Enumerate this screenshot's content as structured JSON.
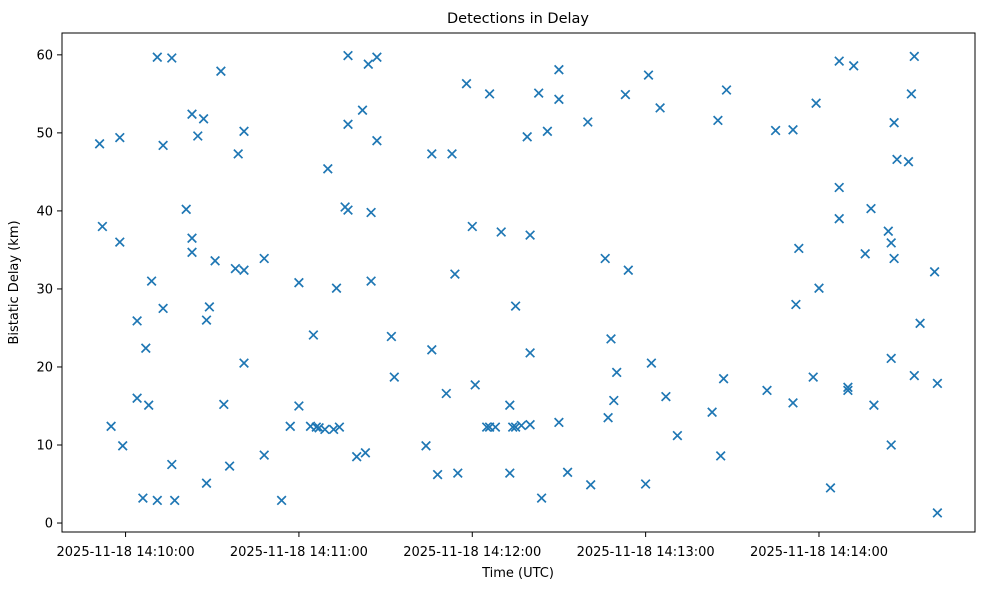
{
  "window": {
    "title": "Detections in Delay"
  },
  "chart_data": {
    "type": "scatter",
    "title": "Detections in Delay",
    "xlabel": "Time (UTC)",
    "ylabel": "Bistatic Delay (km)",
    "date": "2025-11-18",
    "marker": "x",
    "marker_color": "#1f77b4",
    "grid": false,
    "legend": "none",
    "x_tick_labels": [
      "2025-11-18 14:10:00",
      "2025-11-18 14:11:00",
      "2025-11-18 14:12:00",
      "2025-11-18 14:13:00",
      "2025-11-18 14:14:00"
    ],
    "x_tick_seconds": [
      0,
      60,
      120,
      180,
      240
    ],
    "xlim_seconds": [
      -22,
      294
    ],
    "y_ticks": [
      0,
      10,
      20,
      30,
      40,
      50,
      60
    ],
    "ylim": [
      -1.15,
      62.8
    ],
    "points": [
      [
        "14:10:11",
        59.7
      ],
      [
        "14:10:16",
        59.6
      ],
      [
        "14:10:33",
        57.9
      ],
      [
        "14:11:17",
        59.9
      ],
      [
        "14:11:24",
        58.8
      ],
      [
        "14:10:23",
        52.4
      ],
      [
        "14:10:27",
        51.8
      ],
      [
        "14:11:22",
        52.9
      ],
      [
        "14:11:17",
        51.1
      ],
      [
        "14:09:51",
        48.6
      ],
      [
        "14:09:58",
        49.4
      ],
      [
        "14:10:13",
        48.4
      ],
      [
        "14:10:25",
        49.6
      ],
      [
        "14:10:41",
        50.2
      ],
      [
        "14:10:39",
        47.3
      ],
      [
        "14:11:10",
        45.4
      ],
      [
        "14:10:21",
        40.2
      ],
      [
        "14:11:16",
        40.5
      ],
      [
        "14:11:17",
        40.1
      ],
      [
        "14:09:52",
        38.0
      ],
      [
        "14:09:58",
        36.0
      ],
      [
        "14:10:23",
        36.5
      ],
      [
        "14:10:23",
        34.7
      ],
      [
        "14:10:31",
        33.6
      ],
      [
        "14:10:38",
        32.6
      ],
      [
        "14:10:41",
        32.4
      ],
      [
        "14:10:48",
        33.9
      ],
      [
        "14:10:09",
        31.0
      ],
      [
        "14:11:00",
        30.8
      ],
      [
        "14:11:13",
        30.1
      ],
      [
        "14:10:13",
        27.5
      ],
      [
        "14:10:04",
        25.9
      ],
      [
        "14:10:29",
        27.7
      ],
      [
        "14:10:28",
        26.0
      ],
      [
        "14:11:05",
        24.1
      ],
      [
        "14:10:07",
        22.4
      ],
      [
        "14:10:41",
        20.5
      ],
      [
        "14:10:04",
        16.0
      ],
      [
        "14:10:08",
        15.1
      ],
      [
        "14:10:34",
        15.2
      ],
      [
        "14:11:00",
        15.0
      ],
      [
        "14:09:55",
        12.4
      ],
      [
        "14:10:57",
        12.4
      ],
      [
        "14:11:04",
        12.4
      ],
      [
        "14:11:06",
        12.3
      ],
      [
        "14:11:07",
        12.2
      ],
      [
        "14:11:09",
        12.0
      ],
      [
        "14:11:12",
        12.0
      ],
      [
        "14:11:14",
        12.3
      ],
      [
        "14:09:59",
        9.9
      ],
      [
        "14:10:48",
        8.7
      ],
      [
        "14:11:20",
        8.5
      ],
      [
        "14:11:23",
        9.0
      ],
      [
        "14:10:16",
        7.5
      ],
      [
        "14:10:36",
        7.3
      ],
      [
        "14:10:28",
        5.1
      ],
      [
        "14:10:06",
        3.2
      ],
      [
        "14:10:11",
        2.9
      ],
      [
        "14:10:17",
        2.9
      ],
      [
        "14:10:54",
        2.9
      ],
      [
        "14:11:27",
        59.7
      ],
      [
        "14:12:30",
        58.1
      ],
      [
        "14:11:58",
        56.3
      ],
      [
        "14:12:06",
        55.0
      ],
      [
        "14:12:23",
        55.1
      ],
      [
        "14:12:30",
        54.3
      ],
      [
        "14:13:01",
        57.4
      ],
      [
        "14:12:53",
        54.9
      ],
      [
        "14:13:05",
        53.2
      ],
      [
        "14:12:40",
        51.4
      ],
      [
        "14:12:19",
        49.5
      ],
      [
        "14:12:26",
        50.2
      ],
      [
        "14:11:27",
        49.0
      ],
      [
        "14:11:46",
        47.3
      ],
      [
        "14:11:53",
        47.3
      ],
      [
        "14:11:25",
        39.8
      ],
      [
        "14:12:00",
        38.0
      ],
      [
        "14:12:10",
        37.3
      ],
      [
        "14:12:20",
        36.9
      ],
      [
        "14:12:46",
        33.9
      ],
      [
        "14:12:54",
        32.4
      ],
      [
        "14:11:54",
        31.9
      ],
      [
        "14:11:25",
        31.0
      ],
      [
        "14:12:15",
        27.8
      ],
      [
        "14:11:32",
        23.9
      ],
      [
        "14:11:46",
        22.2
      ],
      [
        "14:12:20",
        21.8
      ],
      [
        "14:12:48",
        23.6
      ],
      [
        "14:13:02",
        20.5
      ],
      [
        "14:12:50",
        19.3
      ],
      [
        "14:11:33",
        18.7
      ],
      [
        "14:12:01",
        17.7
      ],
      [
        "14:11:51",
        16.6
      ],
      [
        "14:13:07",
        16.2
      ],
      [
        "14:12:49",
        15.7
      ],
      [
        "14:12:13",
        15.1
      ],
      [
        "14:12:47",
        13.5
      ],
      [
        "14:12:30",
        12.9
      ],
      [
        "14:12:05",
        12.3
      ],
      [
        "14:12:06",
        12.3
      ],
      [
        "14:12:08",
        12.3
      ],
      [
        "14:12:14",
        12.3
      ],
      [
        "14:12:15",
        12.3
      ],
      [
        "14:12:17",
        12.5
      ],
      [
        "14:12:20",
        12.6
      ],
      [
        "14:11:44",
        9.9
      ],
      [
        "14:11:48",
        6.2
      ],
      [
        "14:11:55",
        6.4
      ],
      [
        "14:12:13",
        6.4
      ],
      [
        "14:12:33",
        6.5
      ],
      [
        "14:12:41",
        4.9
      ],
      [
        "14:13:00",
        5.0
      ],
      [
        "14:12:24",
        3.2
      ],
      [
        "14:14:07",
        59.2
      ],
      [
        "14:14:12",
        58.6
      ],
      [
        "14:14:33",
        59.8
      ],
      [
        "14:13:28",
        55.5
      ],
      [
        "14:13:59",
        53.8
      ],
      [
        "14:14:32",
        55.0
      ],
      [
        "14:13:25",
        51.6
      ],
      [
        "14:13:45",
        50.3
      ],
      [
        "14:13:51",
        50.4
      ],
      [
        "14:14:26",
        51.3
      ],
      [
        "14:14:27",
        46.6
      ],
      [
        "14:14:31",
        46.3
      ],
      [
        "14:14:07",
        43.0
      ],
      [
        "14:14:18",
        40.3
      ],
      [
        "14:14:07",
        39.0
      ],
      [
        "14:14:24",
        37.4
      ],
      [
        "14:14:25",
        35.9
      ],
      [
        "14:13:53",
        35.2
      ],
      [
        "14:14:16",
        34.5
      ],
      [
        "14:14:26",
        33.9
      ],
      [
        "14:14:40",
        32.2
      ],
      [
        "14:14:00",
        30.1
      ],
      [
        "14:13:52",
        28.0
      ],
      [
        "14:14:35",
        25.6
      ],
      [
        "14:14:25",
        21.1
      ],
      [
        "14:13:27",
        18.5
      ],
      [
        "14:13:58",
        18.7
      ],
      [
        "14:13:42",
        17.0
      ],
      [
        "14:14:10",
        17.4
      ],
      [
        "14:14:10",
        17.0
      ],
      [
        "14:13:51",
        15.4
      ],
      [
        "14:14:19",
        15.1
      ],
      [
        "14:13:23",
        14.2
      ],
      [
        "14:14:33",
        18.9
      ],
      [
        "14:14:41",
        17.9
      ],
      [
        "14:13:11",
        11.2
      ],
      [
        "14:13:26",
        8.6
      ],
      [
        "14:14:25",
        10.0
      ],
      [
        "14:14:04",
        4.5
      ],
      [
        "14:14:41",
        1.3
      ]
    ]
  }
}
